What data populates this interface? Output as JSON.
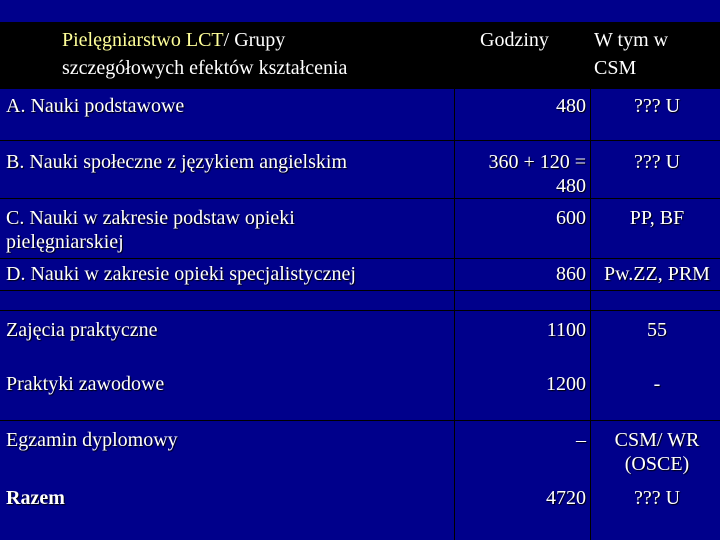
{
  "header": {
    "col1_accent": "Pielęgniarstwo  LCT",
    "col1_rest": "/ Grupy",
    "col1_line2": "szczegółowych efektów kształcenia",
    "col2": "Godziny",
    "col3_line1": "W  tym w",
    "col3_line2": "CSM"
  },
  "rows": [
    {
      "label": "A. Nauki podstawowe",
      "hours": "480",
      "csm": "??? U"
    },
    {
      "label": "B. Nauki społeczne z językiem angielskim",
      "hours": "360 + 120 =\n480",
      "csm": "??? U"
    },
    {
      "label": "C. Nauki w zakresie podstaw opieki\npielęgniarskiej",
      "hours": "600",
      "csm": "PP, BF"
    },
    {
      "label": "D. Nauki w zakresie opieki specjalistycznej",
      "hours": "860",
      "csm": "Pw.ZZ, PRM"
    },
    {
      "label": "Zajęcia praktyczne",
      "hours": "1100",
      "csm": "55"
    },
    {
      "label": "Praktyki zawodowe",
      "hours": "1200",
      "csm": "-"
    },
    {
      "label": "Egzamin dyplomowy",
      "hours": "–",
      "csm": "CSM/ WR\n(OSCE)"
    },
    {
      "label": "Razem",
      "hours": "4720",
      "csm": "??? U"
    }
  ]
}
